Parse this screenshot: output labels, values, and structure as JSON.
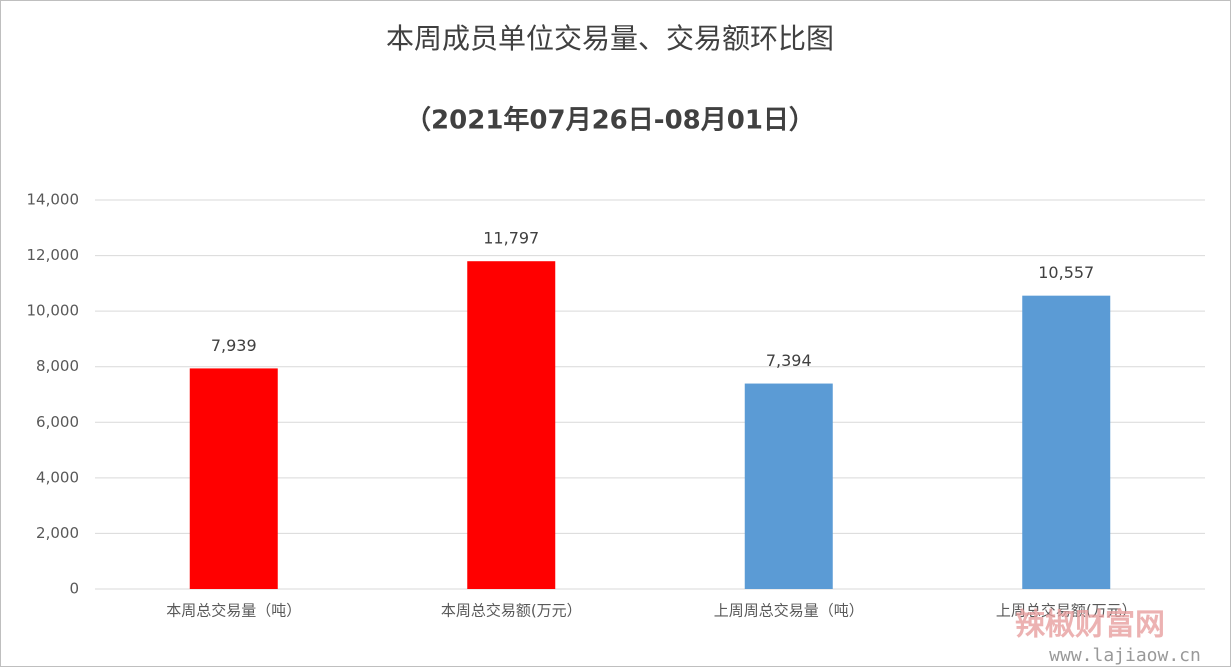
{
  "chart_data": {
    "type": "bar",
    "title": "本周成员单位交易量、交易额环比图",
    "subtitle": "（2021年07月26日-08月01日）",
    "categories": [
      "本周总交易量（吨）",
      "本周总交易额(万元）",
      "上周周总交易量（吨）",
      "上周总交易额(万元）"
    ],
    "values": [
      7939,
      11797,
      7394,
      10557
    ],
    "value_labels": [
      "7,939",
      "11,797",
      "7,394",
      "10,557"
    ],
    "colors": [
      "#ff0000",
      "#ff0000",
      "#5b9bd5",
      "#5b9bd5"
    ],
    "ylim": [
      0,
      14000
    ],
    "yticks": [
      0,
      {
        "value": 2000,
        "label": "2,000"
      },
      {
        "value": 4000,
        "label": "4,000"
      },
      {
        "value": 6000,
        "label": "6,000"
      },
      {
        "value": 8000,
        "label": "8,000"
      },
      {
        "value": 10000,
        "label": "10,000"
      },
      {
        "value": 12000,
        "label": "12,000"
      },
      {
        "value": 14000,
        "label": "14,000"
      }
    ],
    "grid": true
  },
  "watermark": {
    "name": "辣椒财富网",
    "url": "www.lajiaow.cn"
  }
}
